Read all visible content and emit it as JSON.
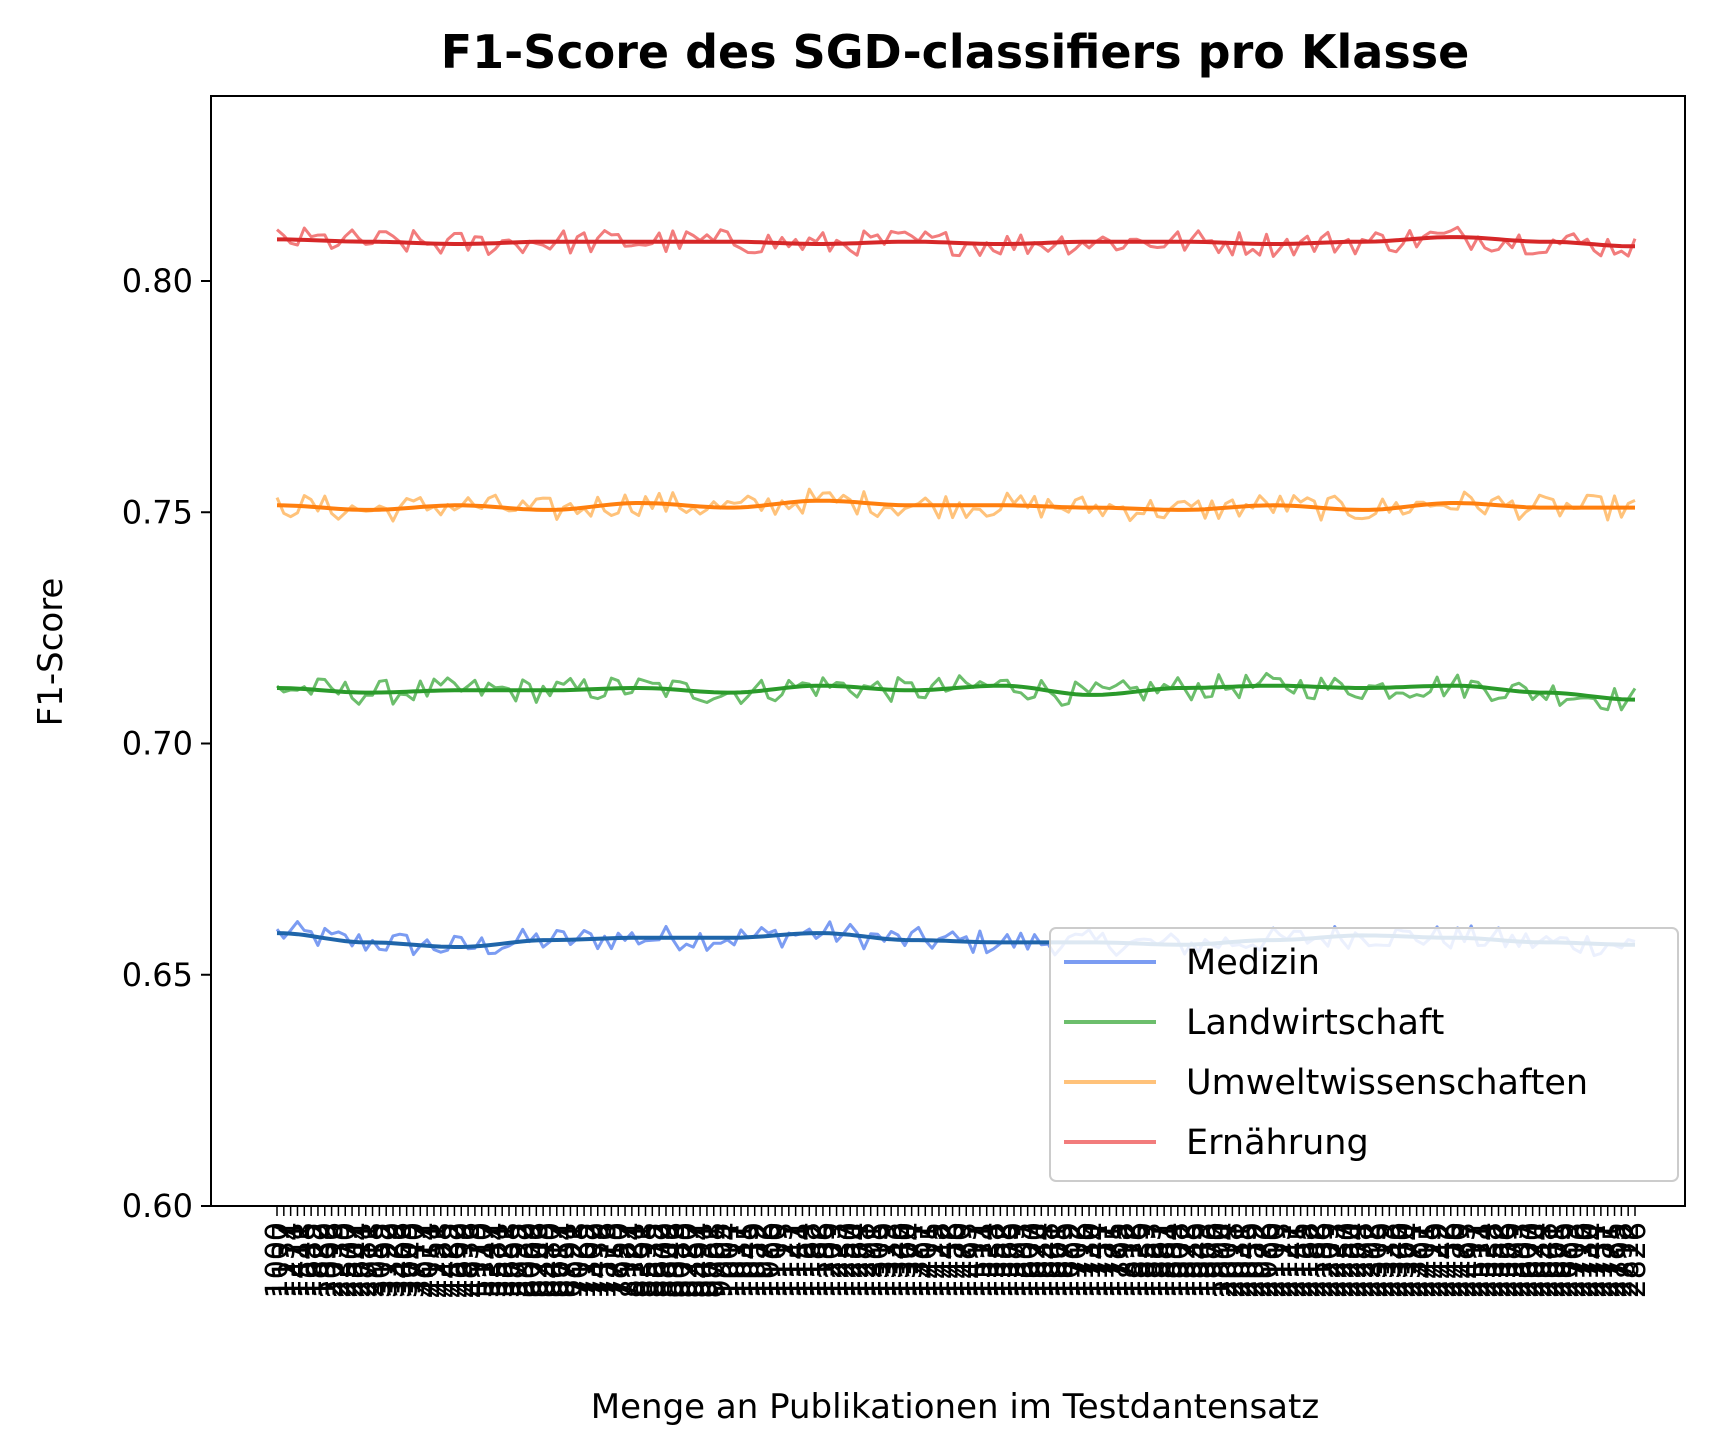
{
  "chart_data": {
    "type": "line",
    "title": "F1-Score des SGD-classifiers pro Klasse",
    "xlabel": "Menge an Publikationen im Testdantensatz",
    "ylabel": "F1-Score",
    "ylim": [
      0.6,
      0.84
    ],
    "yticks": [
      0.6,
      0.65,
      0.7,
      0.75,
      0.8
    ],
    "ytick_labels": [
      "0.60",
      "0.65",
      "0.70",
      "0.75",
      "0.80"
    ],
    "x_count": 200,
    "x_tick_labels_note": "Überlagerte, unleserliche Beschriftungen",
    "grid": false,
    "legend_position": "lower right",
    "series": [
      {
        "name": "Medizin",
        "raw_color": "#7b9cf2",
        "smooth_color": "#1f65aa",
        "baseline": [
          0.659,
          0.657,
          0.656,
          0.6575,
          0.658,
          0.658,
          0.659,
          0.6575,
          0.657,
          0.657,
          0.6565,
          0.6575,
          0.6585,
          0.658,
          0.657,
          0.6565
        ]
      },
      {
        "name": "Landwirtschaft",
        "raw_color": "#6cbe6c",
        "smooth_color": "#2a9a2a",
        "baseline": [
          0.712,
          0.711,
          0.7115,
          0.7115,
          0.712,
          0.711,
          0.7125,
          0.7115,
          0.7125,
          0.7105,
          0.712,
          0.7125,
          0.712,
          0.7125,
          0.711,
          0.7095
        ]
      },
      {
        "name": "Umweltwissenschaften",
        "raw_color": "#ffc27a",
        "smooth_color": "#ff7f0e",
        "baseline": [
          0.7515,
          0.7505,
          0.7515,
          0.7505,
          0.752,
          0.751,
          0.7525,
          0.7515,
          0.7515,
          0.751,
          0.7505,
          0.7515,
          0.7505,
          0.752,
          0.751,
          0.751
        ]
      },
      {
        "name": "Ernährung",
        "raw_color": "#f27c7c",
        "smooth_color": "#d62728",
        "baseline": [
          0.809,
          0.8085,
          0.808,
          0.8085,
          0.8085,
          0.8085,
          0.808,
          0.8085,
          0.808,
          0.8085,
          0.8085,
          0.808,
          0.8085,
          0.8095,
          0.8085,
          0.8075
        ]
      }
    ]
  }
}
